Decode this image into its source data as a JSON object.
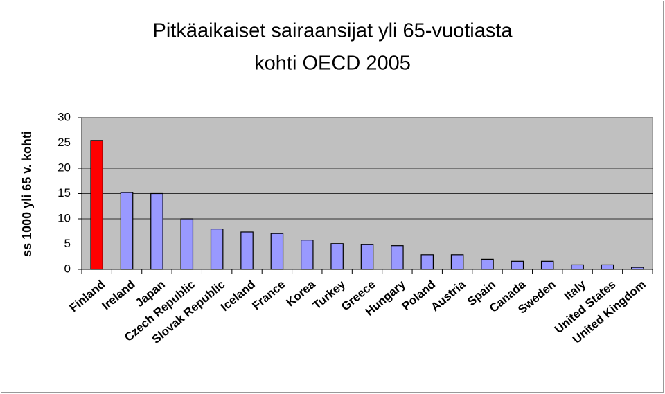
{
  "chart_data": {
    "type": "bar",
    "title": [
      "Pitkäaikaiset sairaansijat yli 65-vuotiasta",
      "kohti OECD 2005"
    ],
    "y_label": "ss 1000 yli 65 v. kohti",
    "categories": [
      "Finland",
      "Ireland",
      "Japan",
      "Czech Republic",
      "Slovak Republic",
      "Iceland",
      "France",
      "Korea",
      "Turkey",
      "Greece",
      "Hungary",
      "Poland",
      "Austria",
      "Spain",
      "Canada",
      "Sweden",
      "Italy",
      "United States",
      "United Kingdom"
    ],
    "values": [
      25.5,
      15.2,
      15,
      10,
      8,
      7.4,
      7.1,
      5.8,
      5.1,
      4.9,
      4.7,
      2.9,
      2.9,
      2,
      1.6,
      1.6,
      0.9,
      0.9,
      0.4
    ],
    "colors": [
      "#ff0000",
      "#9999ff",
      "#9999ff",
      "#9999ff",
      "#9999ff",
      "#9999ff",
      "#9999ff",
      "#9999ff",
      "#9999ff",
      "#9999ff",
      "#9999ff",
      "#9999ff",
      "#9999ff",
      "#9999ff",
      "#9999ff",
      "#9999ff",
      "#9999ff",
      "#9999ff",
      "#9999ff"
    ],
    "ylim": [
      0,
      30
    ],
    "yticks": [
      0,
      5,
      10,
      15,
      20,
      25,
      30
    ],
    "grid": true
  }
}
